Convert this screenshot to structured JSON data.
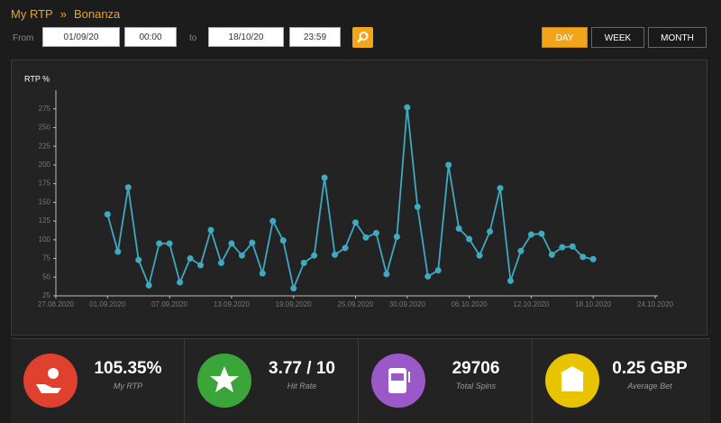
{
  "header": {
    "breadcrumb": [
      "My RTP",
      "Bonanza"
    ],
    "separator": "»"
  },
  "filters": {
    "from_label": "From",
    "from_date": "01/09/20",
    "from_time": "00:00",
    "to_label": "to",
    "to_date": "18/10/20",
    "to_time": "23:59",
    "periods": [
      "DAY",
      "WEEK",
      "MONTH"
    ],
    "active_period": "DAY"
  },
  "chart_data": {
    "type": "line",
    "y_label": "RTP %",
    "color": "#3fa9c0",
    "x": [
      "2020-09-01",
      "2020-09-02",
      "2020-09-03",
      "2020-09-04",
      "2020-09-05",
      "2020-09-06",
      "2020-09-07",
      "2020-09-08",
      "2020-09-09",
      "2020-09-10",
      "2020-09-11",
      "2020-09-12",
      "2020-09-13",
      "2020-09-14",
      "2020-09-15",
      "2020-09-16",
      "2020-09-17",
      "2020-09-18",
      "2020-09-19",
      "2020-09-20",
      "2020-09-21",
      "2020-09-22",
      "2020-09-23",
      "2020-09-24",
      "2020-09-25",
      "2020-09-26",
      "2020-09-27",
      "2020-09-28",
      "2020-09-29",
      "2020-09-30",
      "2020-10-01",
      "2020-10-02",
      "2020-10-03",
      "2020-10-04",
      "2020-10-05",
      "2020-10-06",
      "2020-10-07",
      "2020-10-08",
      "2020-10-09",
      "2020-10-10",
      "2020-10-11",
      "2020-10-12",
      "2020-10-13",
      "2020-10-14",
      "2020-10-15",
      "2020-10-16",
      "2020-10-17",
      "2020-10-18"
    ],
    "values": [
      134,
      84,
      170,
      73,
      39,
      95,
      95,
      43,
      75,
      66,
      113,
      69,
      95,
      79,
      96,
      55,
      125,
      99,
      35,
      69,
      79,
      183,
      80,
      89,
      123,
      103,
      109,
      54,
      104,
      277,
      144,
      51,
      59,
      200,
      115,
      101,
      79,
      111,
      169,
      45,
      85,
      107,
      108,
      80,
      90,
      91,
      77,
      74
    ],
    "xlim": [
      "2020-08-27",
      "2020-10-24"
    ],
    "xticks": [
      {
        "value": "2020-08-27",
        "label": "27.08.2020"
      },
      {
        "value": "2020-09-01",
        "label": "01.09.2020"
      },
      {
        "value": "2020-09-07",
        "label": "07.09.2020"
      },
      {
        "value": "2020-09-13",
        "label": "13.09.2020"
      },
      {
        "value": "2020-09-19",
        "label": "19.09.2020"
      },
      {
        "value": "2020-09-25",
        "label": "25.09.2020"
      },
      {
        "value": "2020-09-30",
        "label": "30.09.2020"
      },
      {
        "value": "2020-10-06",
        "label": "06.10.2020"
      },
      {
        "value": "2020-10-12",
        "label": "12.10.2020"
      },
      {
        "value": "2020-10-18",
        "label": "18.10.2020"
      },
      {
        "value": "2020-10-24",
        "label": "24.10.2020"
      }
    ],
    "ylim": [
      25,
      300
    ],
    "yticks": [
      25,
      50,
      75,
      100,
      125,
      150,
      175,
      200,
      225,
      250,
      275
    ]
  },
  "stats": [
    {
      "value": "105.35%",
      "label": "My RTP"
    },
    {
      "value": "3.77 / 10",
      "label": "Hit Rate"
    },
    {
      "value": "29706",
      "label": "Total Spins"
    },
    {
      "value": "0.25 GBP",
      "label": "Average Bet"
    }
  ]
}
